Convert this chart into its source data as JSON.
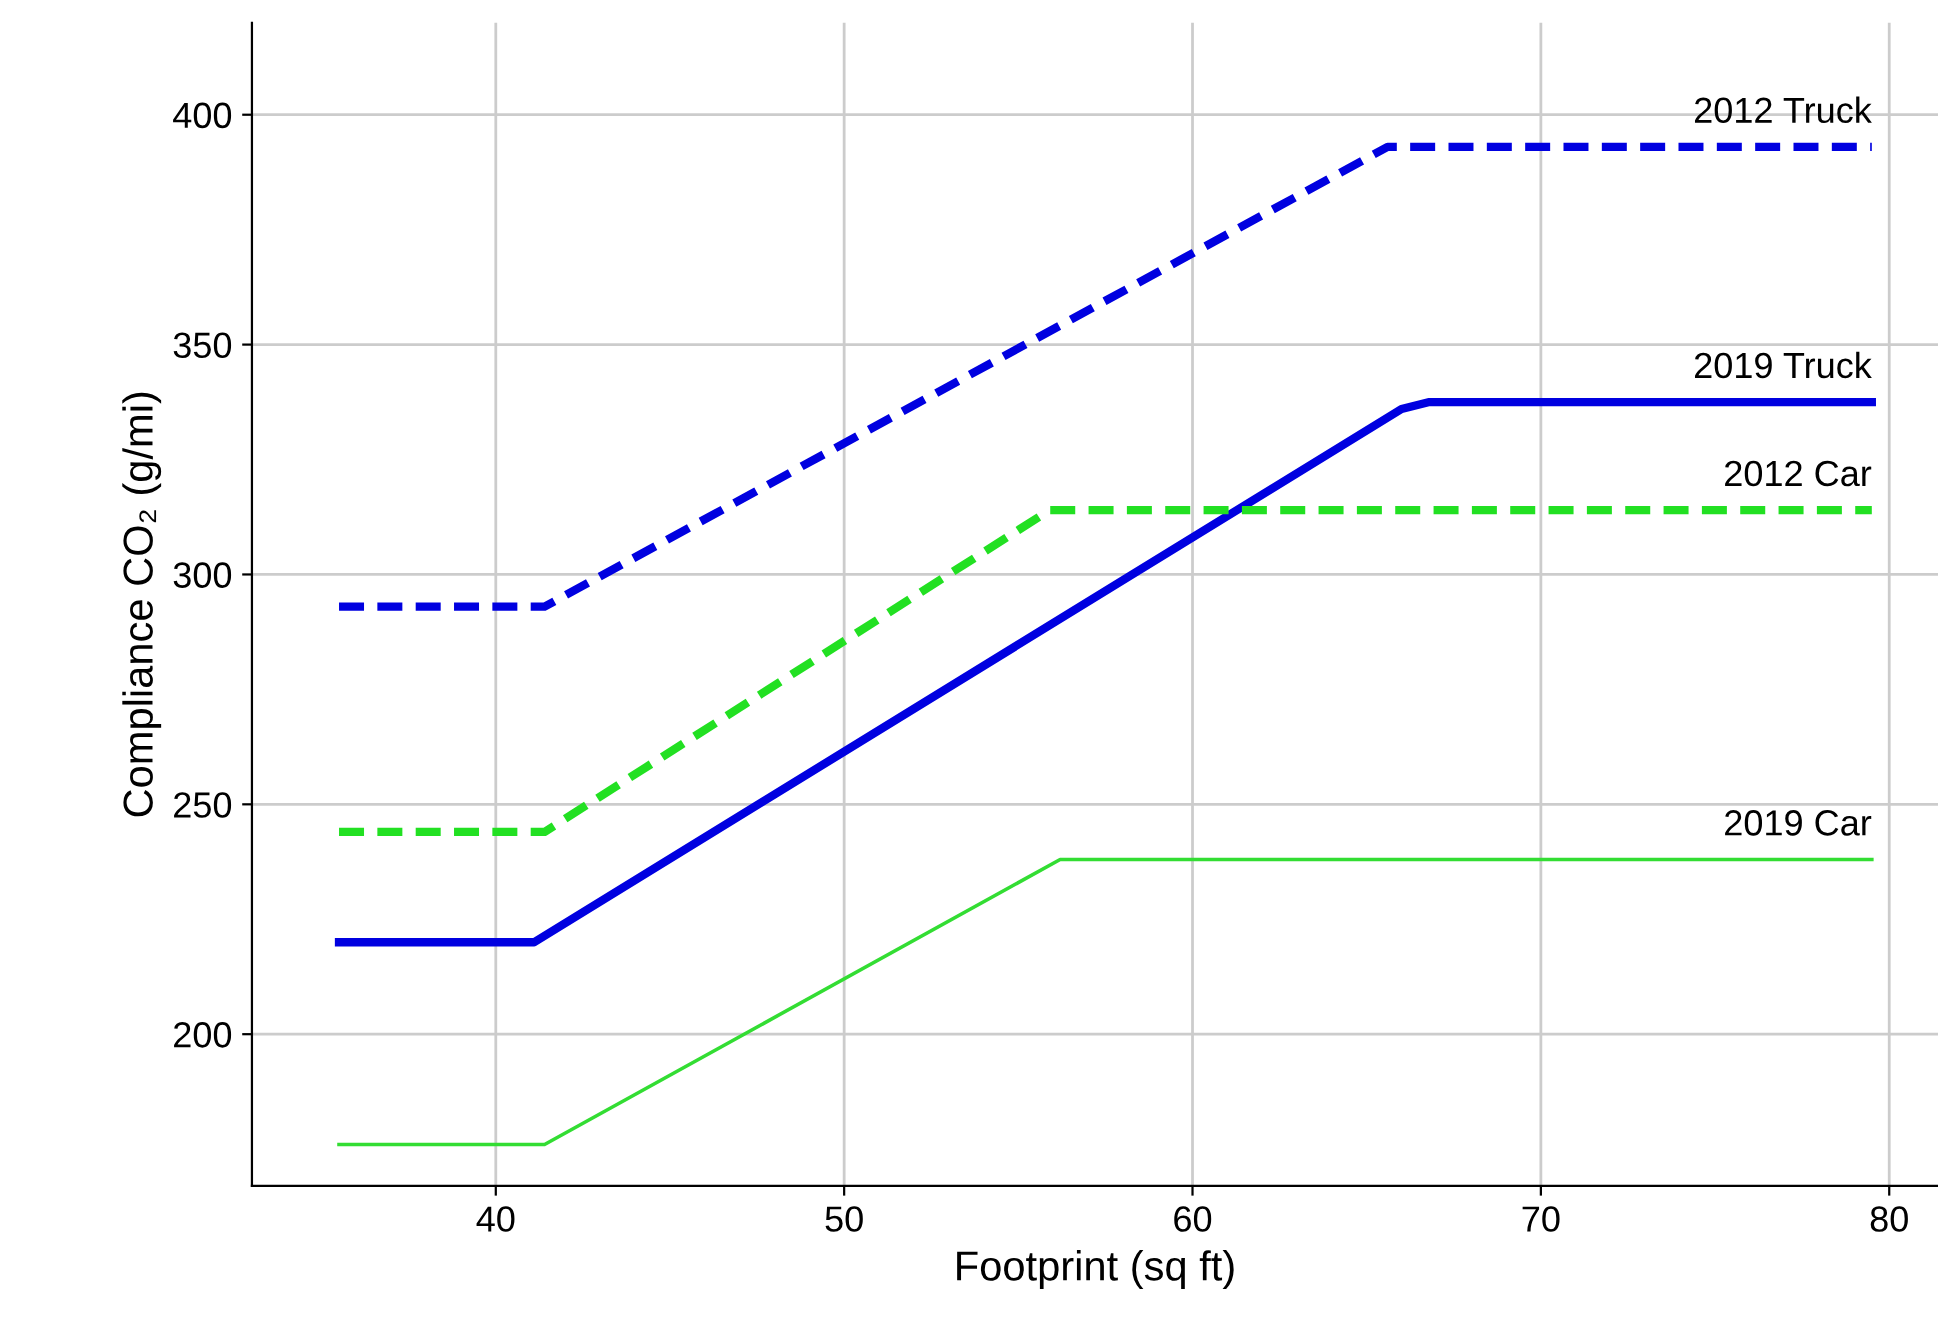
{
  "chart_data": {
    "type": "line",
    "xlabel": "Footprint (sq ft)",
    "ylabel": "Compliance CO₂ (g/mi)",
    "xlim": [
      33,
      81.4
    ],
    "ylim": [
      167,
      420
    ],
    "xticks": [
      40,
      50,
      60,
      70,
      80
    ],
    "yticks": [
      200,
      250,
      300,
      350,
      400
    ],
    "grid": true,
    "legend": false,
    "marker": "none",
    "series": [
      {
        "name": "2012 Truck",
        "color": "#0000e0",
        "line_style": "dashed",
        "x": [
          35.5,
          41.4,
          65.6,
          79.5
        ],
        "values": [
          293,
          293,
          393,
          393
        ]
      },
      {
        "name": "2019 Truck",
        "color": "#0000e0",
        "line_style": "solid",
        "x": [
          35.5,
          41.1,
          66.0,
          66.8,
          79.5
        ],
        "values": [
          220,
          220,
          336,
          337.5,
          337.5
        ]
      },
      {
        "name": "2012 Car",
        "color": "#22e022",
        "line_style": "dashed",
        "x": [
          35.5,
          41.4,
          55.9,
          79.5
        ],
        "values": [
          244,
          244,
          314,
          314
        ]
      },
      {
        "name": "2019 Car",
        "color": "#33dd33",
        "line_style": "solid",
        "x": [
          35.5,
          41.4,
          56.2,
          79.5
        ],
        "values": [
          176,
          176,
          238,
          238
        ]
      }
    ]
  }
}
